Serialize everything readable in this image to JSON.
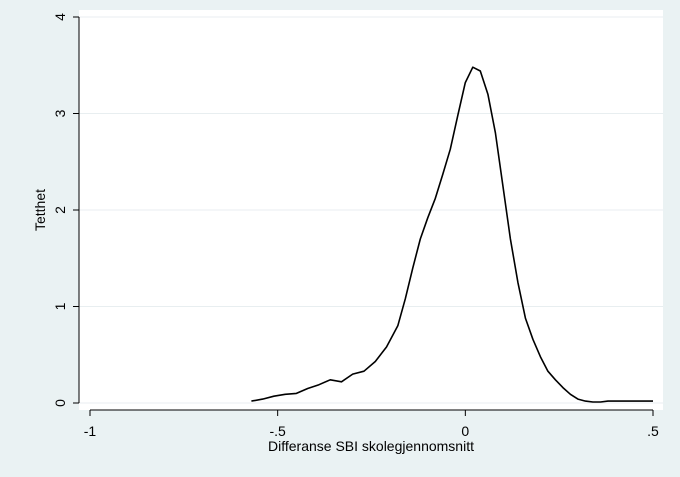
{
  "chart_data": {
    "type": "line",
    "title": "",
    "xlabel": "Differanse SBI skolegjennomsnitt",
    "ylabel": "Tetthet",
    "xlim": [
      -1,
      0.5
    ],
    "ylim": [
      0,
      4
    ],
    "xticks": [
      {
        "value": -1,
        "label": "-1"
      },
      {
        "value": -0.5,
        "label": "-.5"
      },
      {
        "value": 0,
        "label": "0"
      },
      {
        "value": 0.5,
        "label": ".5"
      }
    ],
    "yticks": [
      {
        "value": 0,
        "label": "0"
      },
      {
        "value": 1,
        "label": "1"
      },
      {
        "value": 2,
        "label": "2"
      },
      {
        "value": 3,
        "label": "3"
      },
      {
        "value": 4,
        "label": "4"
      }
    ],
    "grid": true,
    "series": [
      {
        "color": "#000000",
        "x": [
          -0.57,
          -0.54,
          -0.51,
          -0.48,
          -0.45,
          -0.42,
          -0.39,
          -0.36,
          -0.33,
          -0.3,
          -0.27,
          -0.24,
          -0.21,
          -0.18,
          -0.16,
          -0.14,
          -0.12,
          -0.1,
          -0.08,
          -0.06,
          -0.04,
          -0.02,
          0.0,
          0.02,
          0.04,
          0.06,
          0.08,
          0.1,
          0.12,
          0.14,
          0.16,
          0.18,
          0.2,
          0.22,
          0.24,
          0.26,
          0.28,
          0.3,
          0.32,
          0.34,
          0.36,
          0.38,
          0.4,
          0.42,
          0.44,
          0.47,
          0.5
        ],
        "y": [
          0.02,
          0.04,
          0.07,
          0.09,
          0.1,
          0.15,
          0.19,
          0.24,
          0.22,
          0.3,
          0.33,
          0.43,
          0.58,
          0.8,
          1.08,
          1.4,
          1.7,
          1.92,
          2.12,
          2.37,
          2.63,
          2.98,
          3.32,
          3.48,
          3.44,
          3.2,
          2.8,
          2.25,
          1.7,
          1.25,
          0.88,
          0.66,
          0.48,
          0.33,
          0.24,
          0.16,
          0.09,
          0.04,
          0.02,
          0.01,
          0.01,
          0.02,
          0.02,
          0.02,
          0.02,
          0.02,
          0.02
        ]
      }
    ]
  }
}
